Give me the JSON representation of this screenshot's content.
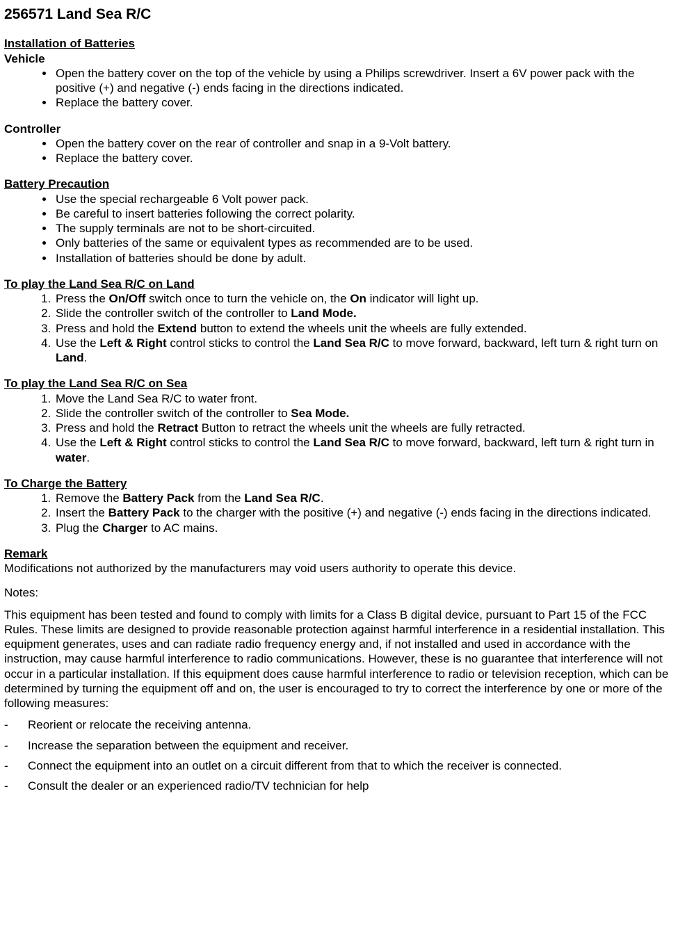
{
  "title": "256571 Land Sea R/C",
  "sections": {
    "install_heading": "Installation of Batteries",
    "vehicle_label": "Vehicle",
    "vehicle_bullets": [
      "Open the battery cover on the top of the vehicle by using a Philips screwdriver. Insert a 6V power pack with the positive (+) and negative (-) ends facing in the directions indicated.",
      "Replace the battery cover."
    ],
    "controller_label": "Controller",
    "controller_bullets": [
      "Open the battery cover on the rear of controller and snap in a 9-Volt battery.",
      "Replace the battery cover."
    ],
    "precaution_heading": "Battery Precaution",
    "precaution_bullets": [
      "Use the special rechargeable 6 Volt power pack.",
      "Be careful to insert batteries following the correct polarity.",
      "The supply terminals are not to be short-circuited.",
      "Only batteries of the same or equivalent types as recommended are to be used.",
      "Installation of batteries should be done by adult."
    ],
    "land_heading": "To play the Land Sea R/C on Land",
    "land_steps": {
      "s1_a": "Press the ",
      "s1_b": "On/Off",
      "s1_c": " switch once to turn the vehicle on, the ",
      "s1_d": "On",
      "s1_e": " indicator will light up.",
      "s2_a": "Slide the controller switch of the controller to ",
      "s2_b": "Land Mode.",
      "s3_a": "Press and hold the ",
      "s3_b": "Extend",
      "s3_c": " button to extend the wheels unit the wheels are fully extended.",
      "s4_a": "Use the ",
      "s4_b": "Left & Right",
      "s4_c": " control sticks to control the ",
      "s4_d": "Land Sea R/C",
      "s4_e": " to move forward, backward, left turn & right turn on ",
      "s4_f": "Land",
      "s4_g": "."
    },
    "sea_heading": "To play the Land Sea R/C on Sea",
    "sea_steps": {
      "s1_a": "Move the Land Sea R/C to ",
      "s1_b": "water front.",
      "s2_a": "Slide the controller switch of the controller to ",
      "s2_b": "Sea Mode.",
      "s3_a": "Press and hold the ",
      "s3_b": "Retract",
      "s3_c": " Button to retract the wheels unit the wheels are fully retracted.",
      "s4_a": "Use the ",
      "s4_b": "Left & Right",
      "s4_c": " control sticks to control the ",
      "s4_d": "Land Sea R/C",
      "s4_e": " to move forward, backward, left turn & right turn in ",
      "s4_f": "water",
      "s4_g": "."
    },
    "charge_heading": "To Charge the Battery",
    "charge_steps": {
      "s1_a": "Remove the ",
      "s1_b": "Battery Pack",
      "s1_c": " from the ",
      "s1_d": "Land Sea R/C",
      "s1_e": ".",
      "s2_a": "Insert the ",
      "s2_b": "Battery Pack",
      "s2_c": " to the charger with the positive (+) and negative (-) ends facing in the directions indicated.",
      "s3_a": "Plug the ",
      "s3_b": "Charger",
      "s3_c": " to AC mains."
    },
    "remark_heading": "Remark",
    "remark_text": "Modifications not authorized by the manufacturers may void users authority to operate this device.",
    "notes_label": "Notes:",
    "notes_para": "This equipment has been tested and found to comply with limits for a Class B digital device, pursuant to Part 15 of the FCC Rules.  These limits are designed to provide reasonable protection against harmful interference in a residential installation.  This equipment generates, uses and can radiate radio frequency energy and, if not installed and used in accordance with the instruction, may cause harmful interference to radio communications.  However, these is no guarantee that interference will not occur in a particular installation.  If this equipment does cause harmful interference to radio or television reception, which can be determined by turning the equipment off and on, the user is encouraged to try to correct the interference by one or more of the following measures:",
    "notes_dashes": [
      "Reorient or relocate the receiving antenna.",
      "Increase the separation between the equipment and receiver.",
      "Connect the equipment into an outlet on a circuit different from that to which the receiver is connected.",
      "Consult the dealer or an experienced radio/TV technician for help"
    ]
  }
}
